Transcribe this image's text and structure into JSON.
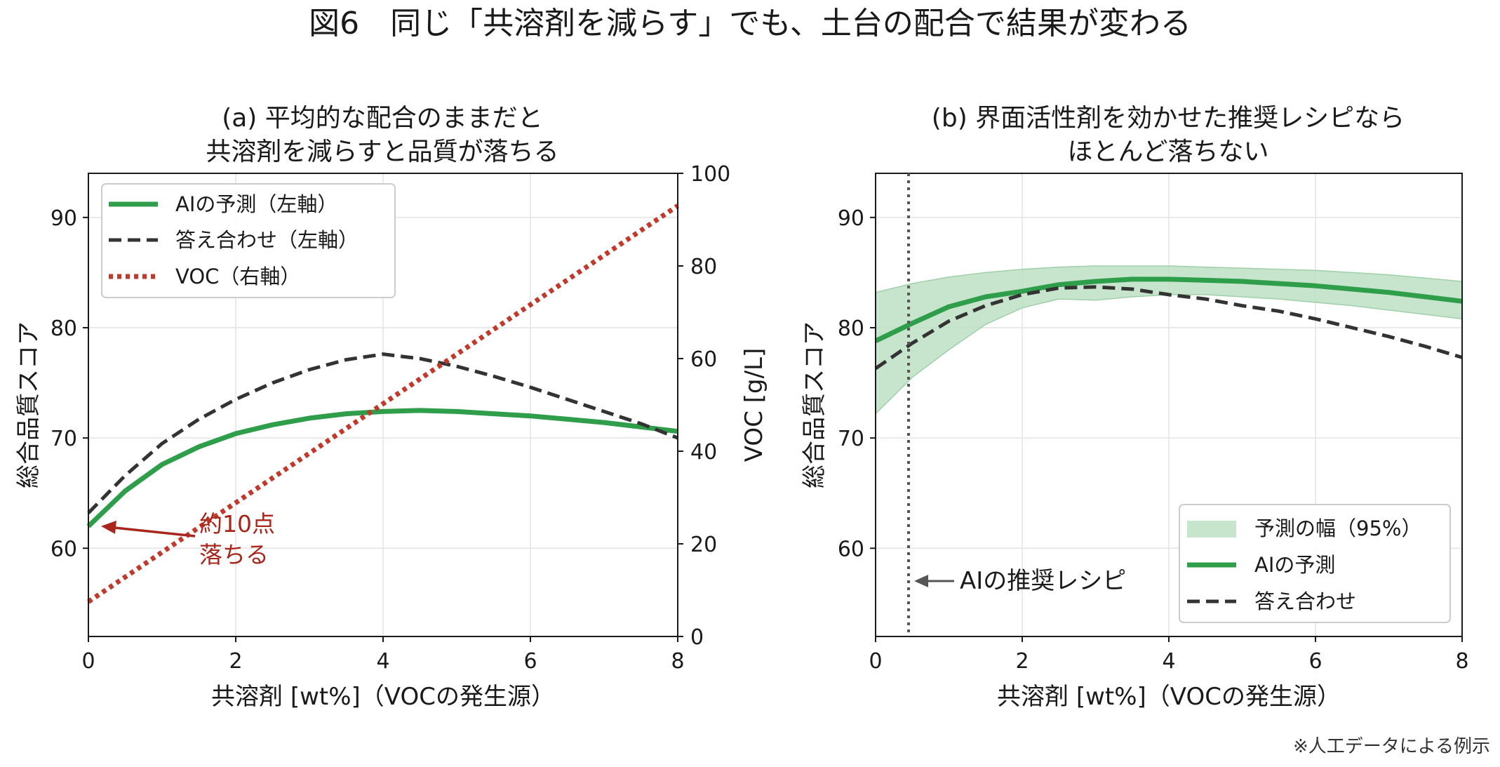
{
  "figure": {
    "title": "図6　同じ「共溶剤を減らす」でも、土台の配合で結果が変わる",
    "footnote": "※人工データによる例示"
  },
  "colors": {
    "ai": "#2e9e4a",
    "ai_band": "#b9ddc0",
    "truth": "#333333",
    "voc": "#c0392b",
    "left_axis": "#1e6b2e",
    "right_axis": "#a33023",
    "annot_left": "#a8261c",
    "annot_right": "#555555",
    "grid": "#e4e4e4"
  },
  "panel_a": {
    "title_line1": "(a) 平均的な配合のままだと",
    "title_line2": "共溶剤を減らすと品質が落ちる",
    "xlabel": "共溶剤 [wt%]（VOCの発生源）",
    "ylabel": "総合品質スコア",
    "y2label": "VOC [g/L]",
    "xticks": [
      "0",
      "2",
      "4",
      "6",
      "8"
    ],
    "yticks": [
      "60",
      "70",
      "80",
      "90"
    ],
    "y2ticks": [
      "0",
      "20",
      "40",
      "60",
      "80",
      "100"
    ],
    "legend": [
      {
        "label": "AIの予測（左軸）",
        "style": "solid",
        "color": "#2e9e4a"
      },
      {
        "label": "答え合わせ（左軸）",
        "style": "dashed",
        "color": "#333333"
      },
      {
        "label": "VOC（右軸）",
        "style": "dotted",
        "color": "#c0392b"
      }
    ],
    "annotation_line1": "約10点",
    "annotation_line2": "落ちる"
  },
  "panel_b": {
    "title_line1": "(b) 界面活性剤を効かせた推奨レシピなら",
    "title_line2": "ほとんど落ちない",
    "xlabel": "共溶剤 [wt%]（VOCの発生源）",
    "ylabel": "総合品質スコア",
    "xticks": [
      "0",
      "2",
      "4",
      "6",
      "8"
    ],
    "yticks": [
      "60",
      "70",
      "80",
      "90"
    ],
    "legend": [
      {
        "label": "予測の幅（95%）",
        "style": "band",
        "color": "#b9ddc0"
      },
      {
        "label": "AIの予測",
        "style": "solid",
        "color": "#2e9e4a"
      },
      {
        "label": "答え合わせ",
        "style": "dashed",
        "color": "#333333"
      }
    ],
    "annotation": "AIの推奨レシピ"
  },
  "chart_data": [
    {
      "type": "line",
      "panel": "a",
      "title": "(a) 平均的な配合のままだと 共溶剤を減らすと品質が落ちる",
      "xlabel": "共溶剤 [wt%]（VOCの発生源）",
      "ylabel": "総合品質スコア",
      "y2label": "VOC [g/L]",
      "xlim": [
        0,
        8
      ],
      "ylim": [
        52,
        94
      ],
      "y2lim": [
        0,
        100
      ],
      "grid": true,
      "legend_position": "top-left",
      "series": [
        {
          "name": "AIの予測（左軸）",
          "axis": "left",
          "style": "solid",
          "x": [
            0,
            0.5,
            1,
            1.5,
            2,
            2.5,
            3,
            3.5,
            4,
            4.5,
            5,
            5.5,
            6,
            6.5,
            7,
            7.5,
            8
          ],
          "y": [
            62.0,
            65.2,
            67.6,
            69.2,
            70.4,
            71.2,
            71.8,
            72.2,
            72.4,
            72.5,
            72.4,
            72.2,
            72.0,
            71.7,
            71.4,
            71.0,
            70.6
          ]
        },
        {
          "name": "答え合わせ（左軸）",
          "axis": "left",
          "style": "dashed",
          "x": [
            0,
            0.5,
            1,
            1.5,
            2,
            2.5,
            3,
            3.5,
            4,
            4.5,
            5,
            5.5,
            6,
            6.5,
            7,
            7.5,
            8
          ],
          "y": [
            63.2,
            66.6,
            69.5,
            71.7,
            73.5,
            75.0,
            76.2,
            77.1,
            77.6,
            77.2,
            76.5,
            75.6,
            74.6,
            73.5,
            72.4,
            71.3,
            70.0
          ]
        },
        {
          "name": "VOC（右軸）",
          "axis": "right",
          "style": "dotted",
          "x": [
            0,
            8
          ],
          "y": [
            7.5,
            93.0
          ]
        }
      ],
      "annotations": [
        {
          "text": "約10点 落ちる",
          "arrow_to": [
            0,
            62
          ]
        }
      ]
    },
    {
      "type": "line",
      "panel": "b",
      "title": "(b) 界面活性剤を効かせた推奨レシピなら ほとんど落ちない",
      "xlabel": "共溶剤 [wt%]（VOCの発生源）",
      "ylabel": "総合品質スコア",
      "xlim": [
        0,
        8
      ],
      "ylim": [
        52,
        94
      ],
      "grid": true,
      "legend_position": "bottom-right",
      "series": [
        {
          "name": "予測の幅（95%）",
          "style": "band",
          "x": [
            0,
            0.5,
            1,
            1.5,
            2,
            2.5,
            3,
            3.5,
            4,
            4.5,
            5,
            5.5,
            6,
            6.5,
            7,
            7.5,
            8
          ],
          "lower": [
            72.2,
            75.5,
            78.0,
            80.3,
            81.8,
            82.6,
            82.5,
            82.8,
            83.0,
            83.0,
            82.8,
            82.6,
            82.3,
            82.0,
            81.6,
            81.2,
            80.8
          ],
          "upper": [
            83.2,
            84.0,
            84.6,
            85.0,
            85.3,
            85.5,
            85.6,
            85.6,
            85.6,
            85.5,
            85.4,
            85.3,
            85.2,
            85.0,
            84.8,
            84.5,
            84.2
          ]
        },
        {
          "name": "AIの予測",
          "style": "solid",
          "x": [
            0,
            0.5,
            1,
            1.5,
            2,
            2.5,
            3,
            3.5,
            4,
            4.5,
            5,
            5.5,
            6,
            6.5,
            7,
            7.5,
            8
          ],
          "y": [
            78.8,
            80.4,
            81.9,
            82.8,
            83.3,
            83.9,
            84.2,
            84.4,
            84.4,
            84.3,
            84.2,
            84.0,
            83.8,
            83.5,
            83.2,
            82.8,
            82.4
          ]
        },
        {
          "name": "答え合わせ",
          "style": "dashed",
          "x": [
            0,
            0.5,
            1,
            1.5,
            2,
            2.5,
            3,
            3.5,
            4,
            4.5,
            5,
            5.5,
            6,
            6.5,
            7,
            7.5,
            8
          ],
          "y": [
            76.3,
            78.6,
            80.6,
            82.0,
            83.0,
            83.6,
            83.7,
            83.5,
            83.0,
            82.6,
            82.0,
            81.5,
            80.8,
            80.0,
            79.2,
            78.3,
            77.3
          ]
        }
      ],
      "annotations": [
        {
          "text": "AIの推奨レシピ",
          "vline_x": 0.45
        }
      ]
    }
  ]
}
